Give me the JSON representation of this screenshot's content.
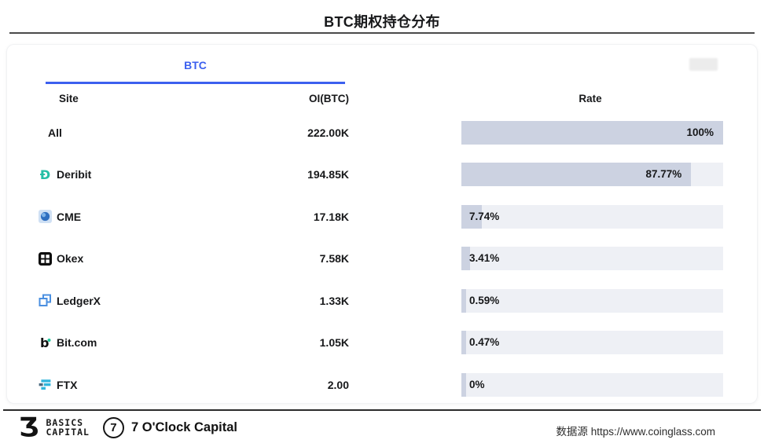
{
  "title": "BTC期权持仓分布",
  "tab": {
    "label": "BTC"
  },
  "table": {
    "headers": {
      "site": "Site",
      "oi": "OI(BTC)",
      "rate": "Rate"
    },
    "rows": [
      {
        "site": "All",
        "icon": "none",
        "oi": "222.00K",
        "rate_label": "100%",
        "rate": 100
      },
      {
        "site": "Deribit",
        "icon": "deribit-icon",
        "oi": "194.85K",
        "rate_label": "87.77%",
        "rate": 87.77
      },
      {
        "site": "CME",
        "icon": "cme-icon",
        "oi": "17.18K",
        "rate_label": "7.74%",
        "rate": 7.74
      },
      {
        "site": "Okex",
        "icon": "okex-icon",
        "oi": "7.58K",
        "rate_label": "3.41%",
        "rate": 3.41
      },
      {
        "site": "LedgerX",
        "icon": "ledgerx-icon",
        "oi": "1.33K",
        "rate_label": "0.59%",
        "rate": 0.59
      },
      {
        "site": "Bit.com",
        "icon": "bitcom-icon",
        "oi": "1.05K",
        "rate_label": "0.47%",
        "rate": 0.47
      },
      {
        "site": "FTX",
        "icon": "ftx-icon",
        "oi": "2.00",
        "rate_label": "0%",
        "rate": 0
      }
    ]
  },
  "footer": {
    "basics_glyph": "Ʒ",
    "basics_line1": "BASICS",
    "basics_line2": "CAPITAL",
    "clock_digit": "7",
    "clock_name": "7 O'Clock Capital",
    "source": "数据源 https://www.coinglass.com"
  },
  "colors": {
    "accent_blue": "#3c60ef",
    "bar_fill": "#ccd2e1",
    "bar_track": "#eef0f5",
    "deribit_teal": "#26bfa6",
    "cme_blue": "#2f6fc0",
    "ledgerx_blue": "#4a8fe0",
    "ftx_cyan": "#31b5dc"
  },
  "chart_data": {
    "type": "bar",
    "title": "BTC期权持仓分布",
    "orientation": "horizontal",
    "categories": [
      "All",
      "Deribit",
      "CME",
      "Okex",
      "LedgerX",
      "Bit.com",
      "FTX"
    ],
    "series": [
      {
        "name": "OI(BTC)",
        "values": [
          "222.00K",
          "194.85K",
          "17.18K",
          "7.58K",
          "1.33K",
          "1.05K",
          "2.00"
        ]
      },
      {
        "name": "Rate",
        "values": [
          100,
          87.77,
          7.74,
          3.41,
          0.59,
          0.47,
          0
        ]
      }
    ],
    "xlabel": "Site",
    "ylabel": "Rate (%)",
    "xlim": [
      0,
      100
    ],
    "grid": false,
    "legend_position": "none",
    "source": "https://www.coinglass.com"
  }
}
